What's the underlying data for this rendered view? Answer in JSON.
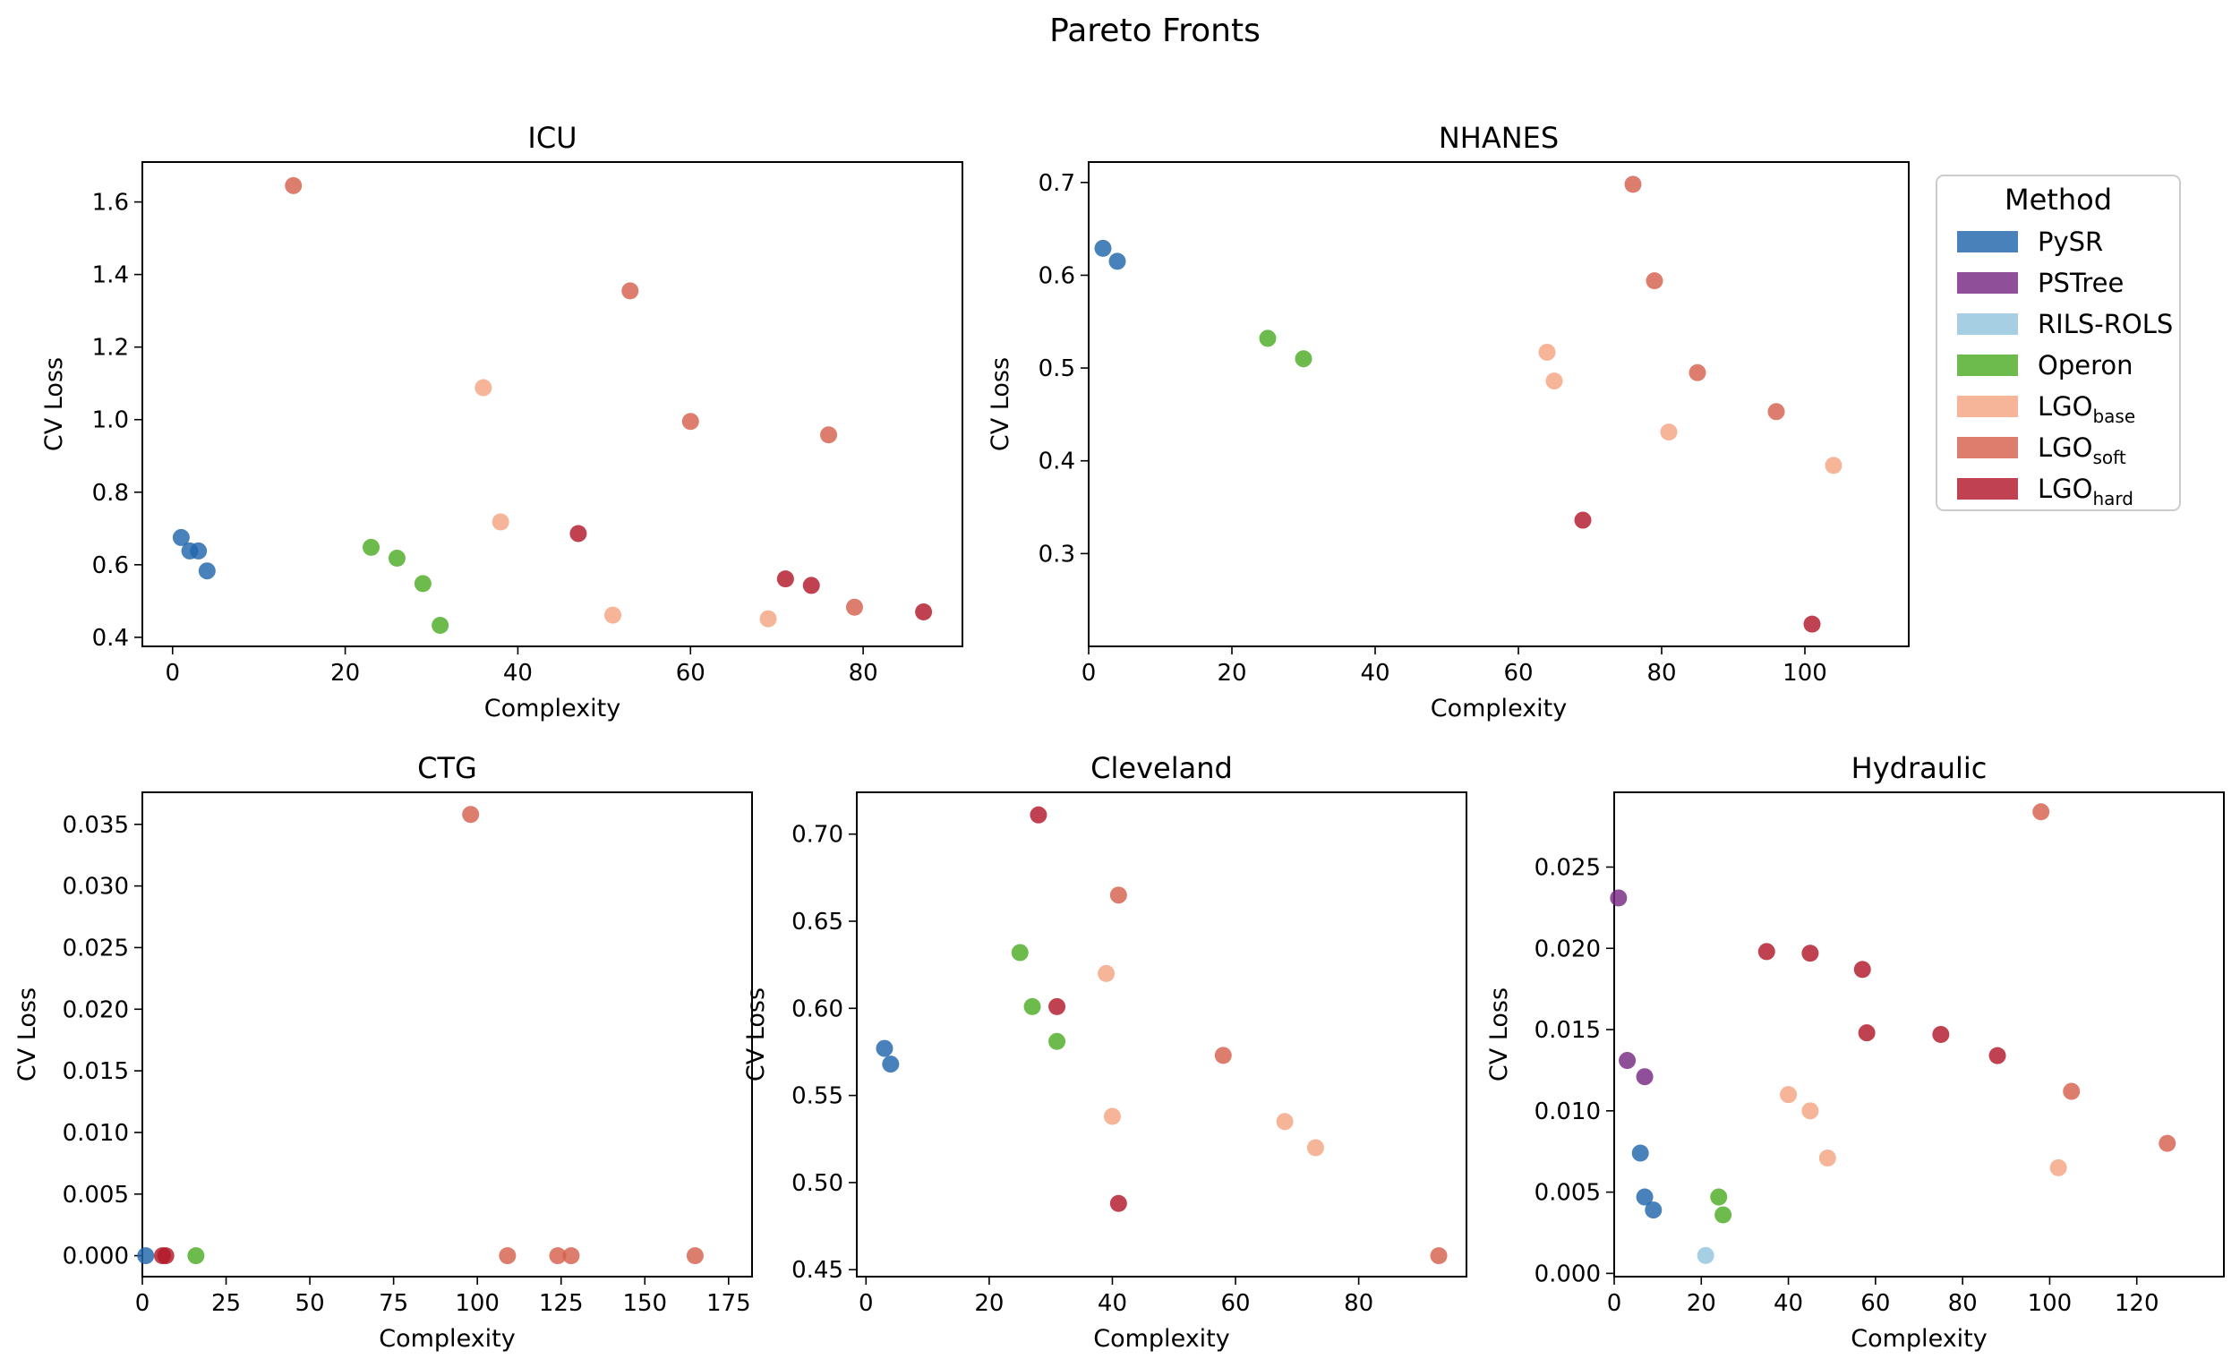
{
  "figure": {
    "title": "Pareto Fronts"
  },
  "colors": {
    "PySR": "#2166ac",
    "PSTree": "#762a83",
    "RILS-ROLS": "#92c5de",
    "Operon": "#4dac26",
    "LGO_base": "#f4a582",
    "LGO_soft": "#d6604d",
    "LGO_hard": "#b2182b"
  },
  "legend": {
    "title": "Method",
    "placement": "right of NHANES panel",
    "items": [
      {
        "key": "PySR",
        "label": "PySR",
        "sub": ""
      },
      {
        "key": "PSTree",
        "label": "PSTree",
        "sub": ""
      },
      {
        "key": "RILS-ROLS",
        "label": "RILS-ROLS",
        "sub": ""
      },
      {
        "key": "Operon",
        "label": "Operon",
        "sub": ""
      },
      {
        "key": "LGO_base",
        "label": "LGO",
        "sub": "base"
      },
      {
        "key": "LGO_soft",
        "label": "LGO",
        "sub": "soft"
      },
      {
        "key": "LGO_hard",
        "label": "LGO",
        "sub": "hard"
      }
    ]
  },
  "chart_data": [
    {
      "id": "icu",
      "type": "scatter",
      "title": "ICU",
      "xlabel": "Complexity",
      "ylabel": "CV Loss",
      "xlim": [
        -3.5,
        91.5
      ],
      "ylim": [
        0.375,
        1.71
      ],
      "xticks": [
        0,
        20,
        40,
        60,
        80
      ],
      "yticks": [
        0.4,
        0.6,
        0.8,
        1.0,
        1.2,
        1.4,
        1.6
      ],
      "ydecimals": 1,
      "xdecimals": 0,
      "series": [
        {
          "name": "PySR",
          "points": [
            [
              1,
              0.675
            ],
            [
              2,
              0.638
            ],
            [
              3,
              0.638
            ],
            [
              4,
              0.583
            ]
          ]
        },
        {
          "name": "Operon",
          "points": [
            [
              23,
              0.648
            ],
            [
              26,
              0.618
            ],
            [
              29,
              0.548
            ],
            [
              31,
              0.433
            ]
          ]
        },
        {
          "name": "LGO_base",
          "points": [
            [
              36,
              1.088
            ],
            [
              38,
              0.718
            ],
            [
              51,
              0.461
            ],
            [
              69,
              0.451
            ]
          ]
        },
        {
          "name": "LGO_soft",
          "points": [
            [
              14,
              1.645
            ],
            [
              53,
              1.355
            ],
            [
              60,
              0.995
            ],
            [
              76,
              0.958
            ],
            [
              79,
              0.483
            ]
          ]
        },
        {
          "name": "LGO_hard",
          "points": [
            [
              47,
              0.686
            ],
            [
              71,
              0.561
            ],
            [
              74,
              0.543
            ],
            [
              87,
              0.47
            ]
          ]
        }
      ]
    },
    {
      "id": "nhanes",
      "type": "scatter",
      "title": "NHANES",
      "xlabel": "Complexity",
      "ylabel": "CV Loss",
      "xlim": [
        0,
        114.5
      ],
      "ylim": [
        0.2,
        0.722
      ],
      "xticks": [
        0,
        20,
        40,
        60,
        80,
        100
      ],
      "yticks": [
        0.3,
        0.4,
        0.5,
        0.6,
        0.7
      ],
      "ydecimals": 1,
      "xdecimals": 0,
      "series": [
        {
          "name": "PySR",
          "points": [
            [
              2,
              0.629
            ],
            [
              4,
              0.615
            ]
          ]
        },
        {
          "name": "Operon",
          "points": [
            [
              25,
              0.532
            ],
            [
              30,
              0.51
            ]
          ]
        },
        {
          "name": "LGO_base",
          "points": [
            [
              64,
              0.517
            ],
            [
              65,
              0.486
            ],
            [
              81,
              0.431
            ],
            [
              104,
              0.395
            ]
          ]
        },
        {
          "name": "LGO_soft",
          "points": [
            [
              76,
              0.698
            ],
            [
              79,
              0.594
            ],
            [
              85,
              0.495
            ],
            [
              96,
              0.453
            ]
          ]
        },
        {
          "name": "LGO_hard",
          "points": [
            [
              69,
              0.336
            ],
            [
              101,
              0.224
            ]
          ]
        }
      ]
    },
    {
      "id": "ctg",
      "type": "scatter",
      "title": "CTG",
      "xlabel": "Complexity",
      "ylabel": "CV Loss",
      "xlim": [
        0,
        182
      ],
      "ylim": [
        -0.0017,
        0.0376
      ],
      "xticks": [
        0,
        25,
        50,
        75,
        100,
        125,
        150,
        175
      ],
      "yticks": [
        0.0,
        0.005,
        0.01,
        0.015,
        0.02,
        0.025,
        0.03,
        0.035
      ],
      "ydecimals": 3,
      "xdecimals": 0,
      "series": [
        {
          "name": "PySR",
          "points": [
            [
              1,
              0.0
            ]
          ]
        },
        {
          "name": "Operon",
          "points": [
            [
              16,
              0.0
            ]
          ]
        },
        {
          "name": "LGO_soft",
          "points": [
            [
              98,
              0.0358
            ],
            [
              109,
              0.0
            ],
            [
              124,
              0.0
            ],
            [
              128,
              0.0
            ],
            [
              165,
              0.0
            ]
          ]
        },
        {
          "name": "LGO_hard",
          "points": [
            [
              6,
              0.0
            ],
            [
              7,
              0.0
            ]
          ]
        }
      ]
    },
    {
      "id": "cleveland",
      "type": "scatter",
      "title": "Cleveland",
      "xlabel": "Complexity",
      "ylabel": "CV Loss",
      "xlim": [
        -1.5,
        97.5
      ],
      "ylim": [
        0.446,
        0.724
      ],
      "xticks": [
        0,
        20,
        40,
        60,
        80
      ],
      "yticks": [
        0.45,
        0.5,
        0.55,
        0.6,
        0.65,
        0.7
      ],
      "ydecimals": 2,
      "xdecimals": 0,
      "series": [
        {
          "name": "PySR",
          "points": [
            [
              3,
              0.577
            ],
            [
              4,
              0.568
            ]
          ]
        },
        {
          "name": "Operon",
          "points": [
            [
              25,
              0.632
            ],
            [
              27,
              0.601
            ],
            [
              31,
              0.581
            ]
          ]
        },
        {
          "name": "LGO_base",
          "points": [
            [
              39,
              0.62
            ],
            [
              40,
              0.538
            ],
            [
              68,
              0.535
            ],
            [
              73,
              0.52
            ]
          ]
        },
        {
          "name": "LGO_soft",
          "points": [
            [
              41,
              0.665
            ],
            [
              58,
              0.573
            ],
            [
              93,
              0.458
            ]
          ]
        },
        {
          "name": "LGO_hard",
          "points": [
            [
              28,
              0.711
            ],
            [
              31,
              0.601
            ],
            [
              41,
              0.488
            ]
          ]
        }
      ]
    },
    {
      "id": "hydraulic",
      "type": "scatter",
      "title": "Hydraulic",
      "xlabel": "Complexity",
      "ylabel": "CV Loss",
      "xlim": [
        0,
        140
      ],
      "ylim": [
        -0.0002,
        0.0296
      ],
      "xticks": [
        0,
        20,
        40,
        60,
        80,
        100,
        120
      ],
      "yticks": [
        0.0,
        0.005,
        0.01,
        0.015,
        0.02,
        0.025
      ],
      "ydecimals": 3,
      "xdecimals": 0,
      "series": [
        {
          "name": "PySR",
          "points": [
            [
              6,
              0.0074
            ],
            [
              7,
              0.0047
            ],
            [
              9,
              0.0039
            ]
          ]
        },
        {
          "name": "PSTree",
          "points": [
            [
              1,
              0.0231
            ],
            [
              3,
              0.0131
            ],
            [
              7,
              0.0121
            ]
          ]
        },
        {
          "name": "RILS-ROLS",
          "points": [
            [
              21,
              0.0011
            ]
          ]
        },
        {
          "name": "Operon",
          "points": [
            [
              24,
              0.0047
            ],
            [
              25,
              0.0036
            ]
          ]
        },
        {
          "name": "LGO_base",
          "points": [
            [
              40,
              0.011
            ],
            [
              45,
              0.01
            ],
            [
              49,
              0.0071
            ],
            [
              102,
              0.0065
            ]
          ]
        },
        {
          "name": "LGO_soft",
          "points": [
            [
              98,
              0.0284
            ],
            [
              105,
              0.0112
            ],
            [
              127,
              0.008
            ]
          ]
        },
        {
          "name": "LGO_hard",
          "points": [
            [
              35,
              0.0198
            ],
            [
              45,
              0.0197
            ],
            [
              57,
              0.0187
            ],
            [
              58,
              0.0148
            ],
            [
              75,
              0.0147
            ],
            [
              88,
              0.0134
            ]
          ]
        }
      ]
    }
  ]
}
